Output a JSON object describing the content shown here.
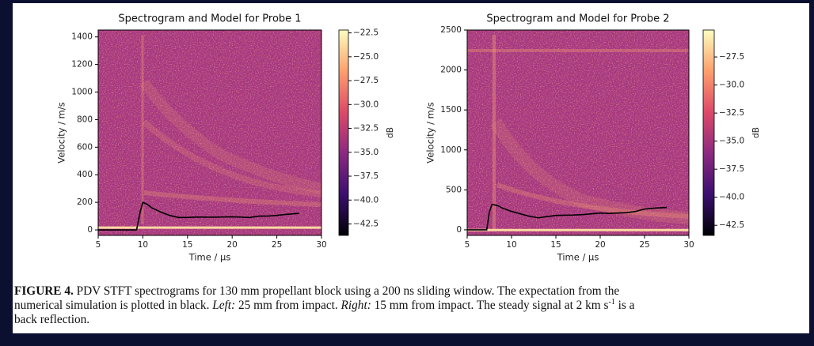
{
  "chart_data": [
    {
      "type": "line",
      "title": "Spectrogram and Model for Probe 1",
      "x_label": "Time / μs",
      "y_label": "Velocity / m/s",
      "xlim": [
        5,
        30
      ],
      "xticks": [
        5,
        10,
        15,
        20,
        25,
        30
      ],
      "ylim": [
        -40,
        1450
      ],
      "yticks": [
        0,
        200,
        400,
        600,
        800,
        1000,
        1200,
        1400
      ],
      "series": [
        {
          "color": "#000000",
          "x": [
            5,
            9.3,
            9.7,
            10,
            10.5,
            11,
            12,
            13,
            14,
            15,
            16,
            18,
            20,
            22,
            23,
            24,
            25,
            26,
            27.5
          ],
          "values": [
            0,
            0,
            130,
            200,
            185,
            160,
            130,
            105,
            90,
            90,
            93,
            92,
            95,
            90,
            100,
            100,
            105,
            112,
            120
          ]
        }
      ],
      "colorbar_label": "dB",
      "clim": [
        -43.7,
        -22.2
      ],
      "cticks": [
        {
          "value": -22.5,
          "label": "−22.5"
        },
        {
          "value": -25,
          "label": "−25.0"
        },
        {
          "value": -27.5,
          "label": "−27.5"
        },
        {
          "value": -30,
          "label": "−30.0"
        },
        {
          "value": -32.5,
          "label": "−32.5"
        },
        {
          "value": -35,
          "label": "−35.0"
        },
        {
          "value": -37.5,
          "label": "−37.5"
        },
        {
          "value": -40,
          "label": "−40.0"
        },
        {
          "value": -42.5,
          "label": "−42.5"
        }
      ]
    },
    {
      "type": "line",
      "title": "Spectrogram and Model for Probe 2",
      "x_label": "Time / μs",
      "y_label": "Velocity / m/s",
      "xlim": [
        5,
        30
      ],
      "xticks": [
        5,
        10,
        15,
        20,
        25,
        30
      ],
      "ylim": [
        -70,
        2500
      ],
      "yticks": [
        0,
        500,
        1000,
        1500,
        2000,
        2500
      ],
      "series": [
        {
          "color": "#000000",
          "x": [
            5,
            7.2,
            7.5,
            7.8,
            8.5,
            9,
            10,
            11,
            12,
            13,
            14,
            15,
            17,
            18,
            20,
            21,
            22,
            23,
            24,
            25,
            26,
            27.5
          ],
          "values": [
            0,
            0,
            220,
            320,
            300,
            270,
            230,
            200,
            170,
            150,
            165,
            180,
            185,
            190,
            210,
            205,
            210,
            215,
            230,
            260,
            270,
            280
          ]
        }
      ],
      "colorbar_label": "dB",
      "clim": [
        -43.4,
        -25.1
      ],
      "cticks": [
        {
          "value": -27.5,
          "label": "−27.5"
        },
        {
          "value": -30,
          "label": "−30.0"
        },
        {
          "value": -32.5,
          "label": "−32.5"
        },
        {
          "value": -35,
          "label": "−35.0"
        },
        {
          "value": -37.5,
          "label": "−37.5"
        },
        {
          "value": -40,
          "label": "−40.0"
        },
        {
          "value": -42.5,
          "label": "−42.5"
        }
      ]
    }
  ],
  "caption": {
    "label": "FIGURE 4.",
    "line1": " PDV STFT spectrograms for 130 mm propellant block using a 200 ns sliding window. The expectation from the",
    "line2a": "numerical simulation is plotted in black. ",
    "left": "Left:",
    "line2b": " 25 mm from impact. ",
    "right": "Right:",
    "line2c": " 15 mm from impact. The steady signal at 2 km s",
    "sup": "-1",
    "line2d": " is a",
    "line3": "back reflection."
  }
}
